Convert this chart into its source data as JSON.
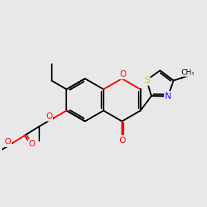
{
  "bg_color": "#e8e8e8",
  "bond_color": "#000000",
  "bond_width": 1.6,
  "atom_colors": {
    "O": "#ff0000",
    "N": "#0000ff",
    "S": "#cccc00",
    "C": "#000000"
  },
  "figsize": [
    3.0,
    3.0
  ],
  "dpi": 100
}
